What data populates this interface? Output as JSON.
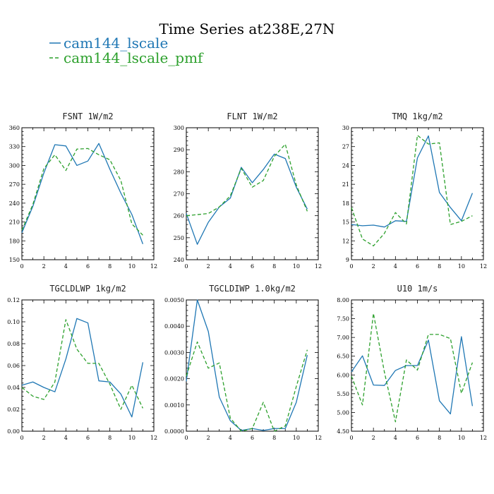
{
  "title": "Time Series at238E,27N",
  "legend": [
    {
      "label": "cam144_lscale",
      "color": "#1f77b4",
      "dash": "solid"
    },
    {
      "label": "cam144_lscale_pmf",
      "color": "#2ca02c",
      "dash": "dashed"
    }
  ],
  "chart_data": [
    {
      "type": "line",
      "title": "FSNT   1W/m2",
      "x": [
        0,
        1,
        2,
        3,
        4,
        5,
        6,
        7,
        8,
        9,
        10,
        11
      ],
      "xlim": [
        0,
        12
      ],
      "xticks": [
        "0",
        "2",
        "4",
        "6",
        "8",
        "10",
        "12"
      ],
      "ylim": [
        150,
        360
      ],
      "yticks": [
        "150",
        "180",
        "210",
        "240",
        "270",
        "300",
        "330",
        "360"
      ],
      "series": [
        {
          "name": "cam144_lscale",
          "values": [
            193,
            235,
            288,
            333,
            331,
            300,
            307,
            335,
            294,
            256,
            222,
            175
          ]
        },
        {
          "name": "cam144_lscale_pmf",
          "values": [
            197,
            238,
            295,
            317,
            292,
            326,
            327,
            317,
            309,
            276,
            207,
            189
          ]
        }
      ]
    },
    {
      "type": "line",
      "title": "FLNT   1W/m2",
      "x": [
        0,
        1,
        2,
        3,
        4,
        5,
        6,
        7,
        8,
        9,
        10,
        11
      ],
      "xlim": [
        0,
        12
      ],
      "xticks": [
        "0",
        "2",
        "4",
        "6",
        "8",
        "10",
        "12"
      ],
      "ylim": [
        240,
        300
      ],
      "yticks": [
        "240",
        "250",
        "260",
        "270",
        "280",
        "290",
        "300"
      ],
      "series": [
        {
          "name": "cam144_lscale",
          "values": [
            261,
            247,
            257,
            264,
            268,
            282,
            275,
            281,
            288,
            286,
            273,
            263
          ]
        },
        {
          "name": "cam144_lscale_pmf",
          "values": [
            260,
            260.5,
            261,
            264,
            269,
            281.5,
            273,
            276,
            287,
            292.5,
            274,
            262
          ]
        }
      ]
    },
    {
      "type": "line",
      "title": "TMQ   1kg/m2",
      "x": [
        0,
        1,
        2,
        3,
        4,
        5,
        6,
        7,
        8,
        9,
        10,
        11
      ],
      "xlim": [
        0,
        12
      ],
      "xticks": [
        "0",
        "2",
        "4",
        "6",
        "8",
        "10",
        "12"
      ],
      "ylim": [
        9,
        30
      ],
      "yticks": [
        "9",
        "12",
        "15",
        "18",
        "21",
        "24",
        "27",
        "30"
      ],
      "series": [
        {
          "name": "cam144_lscale",
          "values": [
            14.6,
            14.4,
            14.5,
            14.2,
            15.2,
            15.1,
            25.2,
            28.7,
            19.7,
            17.3,
            15.2,
            19.6
          ]
        },
        {
          "name": "cam144_lscale_pmf",
          "values": [
            17.3,
            12.3,
            11.2,
            13.2,
            16.5,
            14.7,
            28.8,
            27.4,
            27.6,
            14.6,
            15.1,
            16.0
          ]
        }
      ]
    },
    {
      "type": "line",
      "title": "TGCLDLWP   1kg/m2",
      "x": [
        0,
        1,
        2,
        3,
        4,
        5,
        6,
        7,
        8,
        9,
        10,
        11
      ],
      "xlim": [
        0,
        12
      ],
      "xticks": [
        "0",
        "2",
        "4",
        "6",
        "8",
        "10",
        "12"
      ],
      "ylim": [
        0,
        0.12
      ],
      "yticks": [
        "0.00",
        "0.02",
        "0.04",
        "0.06",
        "0.08",
        "0.10",
        "0.12"
      ],
      "series": [
        {
          "name": "cam144_lscale",
          "values": [
            0.042,
            0.045,
            0.04,
            0.036,
            0.066,
            0.103,
            0.099,
            0.046,
            0.045,
            0.034,
            0.013,
            0.063
          ]
        },
        {
          "name": "cam144_lscale_pmf",
          "values": [
            0.04,
            0.032,
            0.029,
            0.045,
            0.102,
            0.075,
            0.062,
            0.062,
            0.043,
            0.02,
            0.042,
            0.021
          ]
        }
      ]
    },
    {
      "type": "line",
      "title": "TGCLDIWP   1.0kg/m2",
      "x": [
        0,
        1,
        2,
        3,
        4,
        5,
        6,
        7,
        8,
        9,
        10,
        11
      ],
      "xlim": [
        0,
        12
      ],
      "xticks": [
        "0",
        "2",
        "4",
        "6",
        "8",
        "10",
        "12"
      ],
      "ylim": [
        0,
        0.005
      ],
      "yticks": [
        "0.0000",
        "0.0010",
        "0.0020",
        "0.0030",
        "0.0040",
        "0.0050"
      ],
      "series": [
        {
          "name": "cam144_lscale",
          "values": [
            0.0019,
            0.005,
            0.0038,
            0.0013,
            0.0004,
            3e-05,
            0.0001,
            3e-05,
            0.0001,
            0.0001,
            0.0011,
            0.0029
          ]
        },
        {
          "name": "cam144_lscale_pmf",
          "values": [
            0.0021,
            0.0034,
            0.0024,
            0.0026,
            0.0005,
            0.0,
            0.0001,
            0.0011,
            0.0,
            0.0002,
            0.0017,
            0.0031
          ]
        }
      ]
    },
    {
      "type": "line",
      "title": "U10   1m/s",
      "x": [
        0,
        1,
        2,
        3,
        4,
        5,
        6,
        7,
        8,
        9,
        10,
        11
      ],
      "xlim": [
        0,
        12
      ],
      "xticks": [
        "0",
        "2",
        "4",
        "6",
        "8",
        "10",
        "12"
      ],
      "ylim": [
        4.5,
        8.0
      ],
      "yticks": [
        "4.50",
        "5.00",
        "5.50",
        "6.00",
        "6.50",
        "7.00",
        "7.50",
        "8.00"
      ],
      "series": [
        {
          "name": "cam144_lscale",
          "values": [
            6.08,
            6.51,
            5.73,
            5.72,
            6.12,
            6.25,
            6.25,
            6.93,
            5.31,
            4.96,
            7.02,
            5.17
          ]
        },
        {
          "name": "cam144_lscale_pmf",
          "values": [
            5.97,
            5.2,
            7.64,
            6.07,
            4.75,
            6.4,
            6.13,
            7.08,
            7.08,
            6.97,
            5.51,
            6.33
          ]
        }
      ]
    }
  ]
}
